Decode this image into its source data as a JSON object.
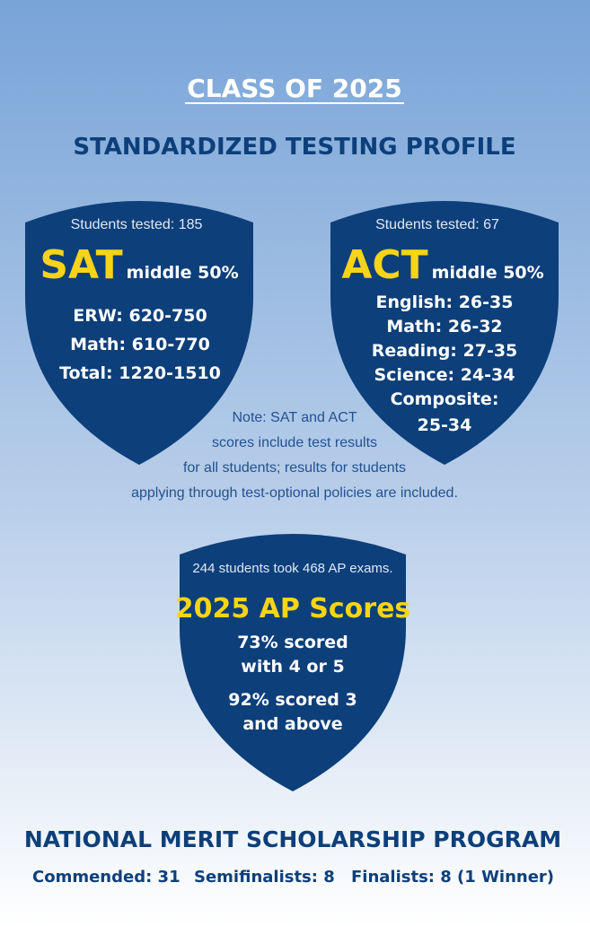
{
  "header": {
    "title": "CLASS OF 2025",
    "subtitle": "STANDARDIZED TESTING PROFILE"
  },
  "sat": {
    "tested": "Students tested: 185",
    "name": "SAT",
    "range": "middle 50%",
    "lines": [
      "ERW: 620-750",
      "Math: 610-770",
      "Total: 1220-1510"
    ]
  },
  "act": {
    "tested": "Students tested: 67",
    "name": "ACT",
    "range": "middle 50%",
    "lines": [
      "English: 26-35",
      "Math: 26-32",
      "Reading: 27-35",
      "Science: 24-34",
      "Composite:",
      "25-34"
    ]
  },
  "note": [
    "Note: SAT and ACT",
    "scores include test results",
    "for all students; results for students",
    "applying through test-optional policies are included."
  ],
  "ap": {
    "intro": "244 students took 468 AP exams.",
    "title": "2025 AP Scores",
    "lines": [
      "73% scored",
      "with 4 or 5",
      "92% scored 3",
      "and above"
    ]
  },
  "merit": {
    "title": "NATIONAL MERIT SCHOLARSHIP PROGRAM",
    "items": [
      "Commended: 31",
      "Semifinalists: 8",
      "Finalists: 8 (1 Winner)"
    ]
  }
}
